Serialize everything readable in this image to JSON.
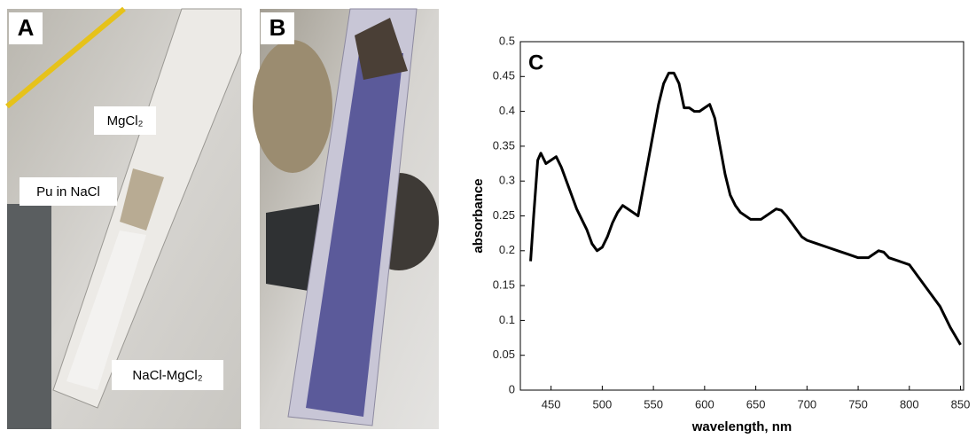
{
  "panels": [
    {
      "label": "A",
      "annotations": [
        "MgCl₂",
        "Pu in NaCl",
        "NaCl-MgCl₂"
      ]
    },
    {
      "label": "B"
    }
  ],
  "chart_data": {
    "type": "line",
    "label": "C",
    "x_label": "wavelength, nm",
    "y_label": "absorbance",
    "x": [
      430,
      433,
      437,
      440,
      445,
      450,
      455,
      460,
      465,
      470,
      475,
      480,
      485,
      490,
      495,
      500,
      505,
      510,
      515,
      520,
      525,
      530,
      535,
      540,
      545,
      550,
      555,
      560,
      565,
      570,
      575,
      580,
      585,
      590,
      595,
      600,
      605,
      610,
      615,
      620,
      625,
      630,
      635,
      640,
      645,
      650,
      655,
      660,
      665,
      670,
      675,
      680,
      685,
      690,
      695,
      700,
      710,
      720,
      730,
      740,
      750,
      760,
      770,
      775,
      780,
      790,
      800,
      810,
      820,
      830,
      840,
      850
    ],
    "series": [
      {
        "color": "#000000",
        "values": [
          0.185,
          0.25,
          0.33,
          0.34,
          0.325,
          0.33,
          0.335,
          0.32,
          0.3,
          0.28,
          0.26,
          0.245,
          0.23,
          0.21,
          0.2,
          0.205,
          0.22,
          0.24,
          0.255,
          0.265,
          0.26,
          0.255,
          0.25,
          0.29,
          0.33,
          0.37,
          0.41,
          0.44,
          0.455,
          0.455,
          0.44,
          0.405,
          0.405,
          0.4,
          0.4,
          0.405,
          0.41,
          0.39,
          0.35,
          0.31,
          0.28,
          0.265,
          0.255,
          0.25,
          0.245,
          0.245,
          0.245,
          0.25,
          0.255,
          0.26,
          0.258,
          0.25,
          0.24,
          0.23,
          0.22,
          0.215,
          0.21,
          0.205,
          0.2,
          0.195,
          0.19,
          0.19,
          0.2,
          0.198,
          0.19,
          0.185,
          0.18,
          0.16,
          0.14,
          0.12,
          0.09,
          0.065
        ]
      }
    ],
    "xlim": [
      420,
      853
    ],
    "ylim": [
      0,
      0.5
    ],
    "xticks": [
      450,
      500,
      550,
      600,
      650,
      700,
      750,
      800,
      850
    ],
    "yticks": [
      0,
      0.05,
      0.1,
      0.15,
      0.2,
      0.25,
      0.3,
      0.35,
      0.4,
      0.45,
      0.5
    ]
  }
}
